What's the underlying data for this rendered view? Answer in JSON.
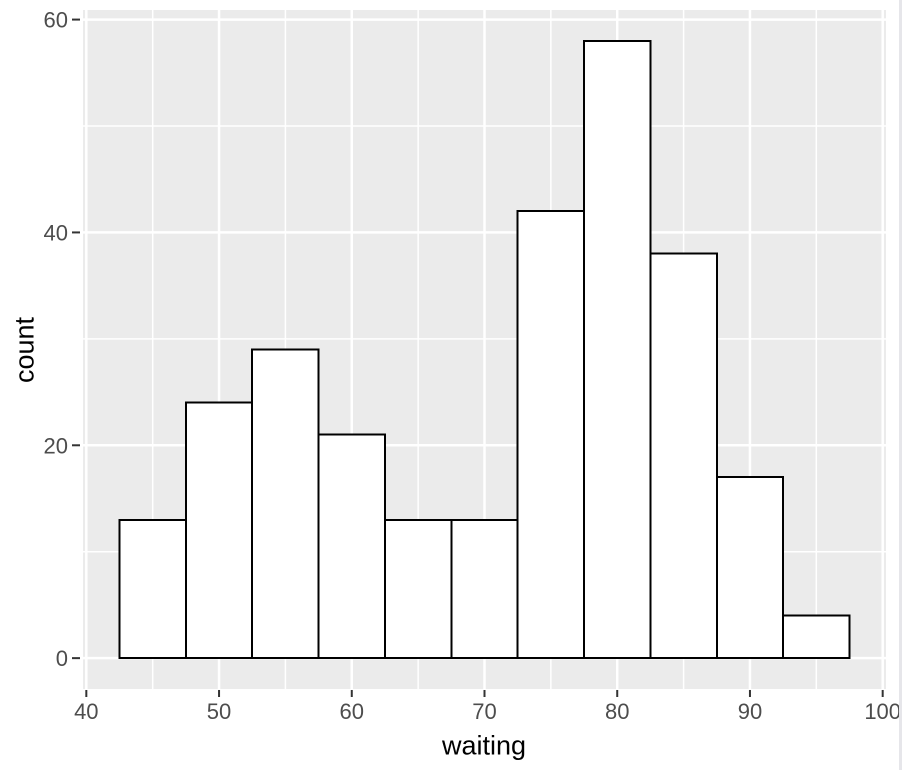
{
  "chart_data": {
    "type": "bar",
    "subtype": "histogram",
    "title": "",
    "xlabel": "waiting",
    "ylabel": "count",
    "bin_width": 5,
    "bin_edges": [
      42.5,
      47.5,
      52.5,
      57.5,
      62.5,
      67.5,
      72.5,
      77.5,
      82.5,
      87.5,
      92.5,
      97.5
    ],
    "categories": [
      45,
      50,
      55,
      60,
      65,
      70,
      75,
      80,
      85,
      90,
      95
    ],
    "values": [
      13,
      24,
      29,
      21,
      13,
      13,
      42,
      58,
      38,
      17,
      4
    ],
    "xlim": [
      39.75,
      100.25
    ],
    "ylim": [
      -2.9,
      60.9
    ],
    "x_ticks": [
      40,
      50,
      60,
      70,
      80,
      90,
      100
    ],
    "y_ticks": [
      0,
      20,
      40,
      60
    ],
    "x_minor_ticks": [
      45,
      55,
      65,
      75,
      85,
      95
    ],
    "y_minor_ticks": [
      10,
      30,
      50
    ],
    "grid": "on",
    "legend": "none",
    "theme": "ggplot2-grey",
    "colors": {
      "page_bg": "#FFFFFF",
      "panel_bg": "#EBEBEB",
      "grid_major": "#FFFFFF",
      "grid_minor": "#FFFFFF",
      "bar_fill": "#FFFFFF",
      "bar_stroke": "#000000",
      "tick_mark": "#333333",
      "tick_label": "#4D4D4D",
      "axis_title": "#000000",
      "window_edge": "#E6E6EA"
    }
  }
}
